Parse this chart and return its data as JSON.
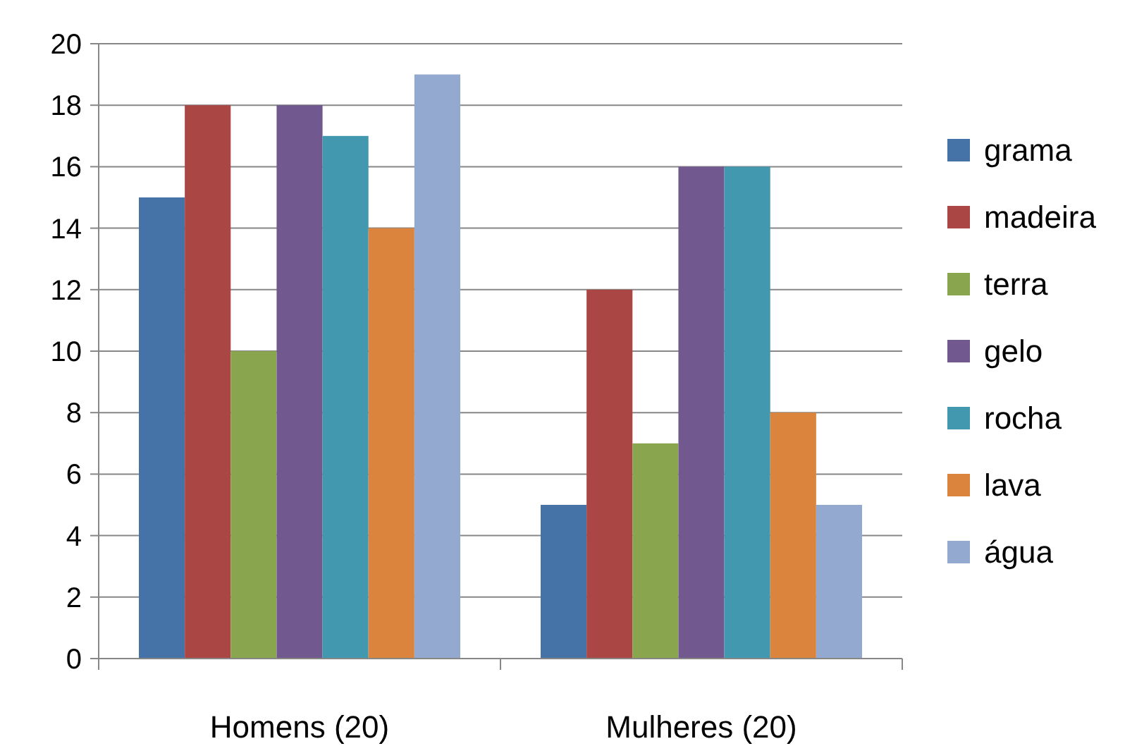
{
  "chart_data": {
    "type": "bar",
    "categories": [
      "Homens (20)",
      "Mulheres (20)"
    ],
    "series": [
      {
        "name": "grama",
        "color": "#4573a7",
        "values": [
          15,
          5
        ]
      },
      {
        "name": "madeira",
        "color": "#aa4644",
        "values": [
          18,
          12
        ]
      },
      {
        "name": "terra",
        "color": "#89a54e",
        "values": [
          10,
          7
        ]
      },
      {
        "name": "gelo",
        "color": "#71588f",
        "values": [
          18,
          16
        ]
      },
      {
        "name": "rocha",
        "color": "#4298af",
        "values": [
          17,
          16
        ]
      },
      {
        "name": "lava",
        "color": "#db843d",
        "values": [
          14,
          8
        ]
      },
      {
        "name": "água",
        "color": "#93a9d0",
        "values": [
          19,
          5
        ]
      }
    ],
    "ylim": [
      0,
      20
    ],
    "yticks": [
      0,
      2,
      4,
      6,
      8,
      10,
      12,
      14,
      16,
      18,
      20
    ],
    "grid": "y",
    "legend": "right"
  }
}
